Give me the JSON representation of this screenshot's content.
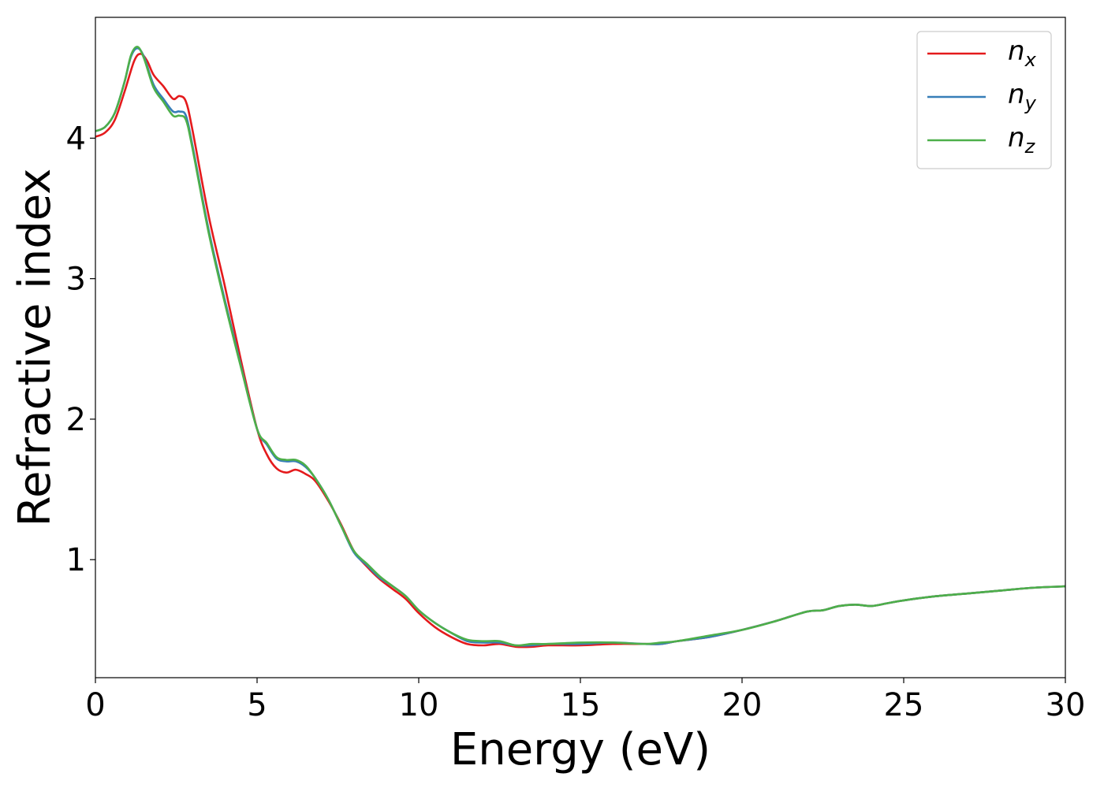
{
  "chart_data": {
    "type": "line",
    "title": "",
    "xlabel": "Energy (eV)",
    "ylabel": "Refractive index",
    "xlim": [
      0,
      30
    ],
    "ylim": [
      0.16,
      4.86
    ],
    "xticks": [
      0,
      5,
      10,
      15,
      20,
      25,
      30
    ],
    "xtick_labels": [
      "0",
      "5",
      "10",
      "15",
      "20",
      "25",
      "30"
    ],
    "yticks": [
      1,
      2,
      3,
      4
    ],
    "ytick_labels": [
      "1",
      "2",
      "3",
      "4"
    ],
    "grid": false,
    "legend_position": "top-right",
    "series": [
      {
        "name": "n_x",
        "legend_base": "n",
        "legend_sub": "x",
        "color": "#e41a1c",
        "x": [
          0,
          0.3,
          0.6,
          0.9,
          1.2,
          1.4,
          1.6,
          1.8,
          2.1,
          2.4,
          2.6,
          2.8,
          3.0,
          3.5,
          4.0,
          4.5,
          5.0,
          5.3,
          5.6,
          5.9,
          6.2,
          6.5,
          6.8,
          7.2,
          7.6,
          8.0,
          8.4,
          8.8,
          9.2,
          9.6,
          10.0,
          10.5,
          11.0,
          11.5,
          12.0,
          12.5,
          13.0,
          13.5,
          14.0,
          15.0,
          16.0,
          17.0,
          17.5,
          18.0,
          19.0,
          20.0,
          21.0,
          22.0,
          22.5,
          23.0,
          23.5,
          24.0,
          24.5,
          25.0,
          26.0,
          27.0,
          28.0,
          29.0,
          30.0
        ],
        "y": [
          4.01,
          4.04,
          4.13,
          4.33,
          4.55,
          4.6,
          4.55,
          4.45,
          4.37,
          4.28,
          4.3,
          4.26,
          4.06,
          3.45,
          2.95,
          2.42,
          1.93,
          1.75,
          1.65,
          1.62,
          1.64,
          1.61,
          1.56,
          1.42,
          1.25,
          1.06,
          0.95,
          0.86,
          0.79,
          0.72,
          0.62,
          0.52,
          0.45,
          0.4,
          0.39,
          0.4,
          0.38,
          0.38,
          0.39,
          0.39,
          0.4,
          0.4,
          0.4,
          0.42,
          0.45,
          0.5,
          0.56,
          0.63,
          0.64,
          0.67,
          0.68,
          0.67,
          0.69,
          0.71,
          0.74,
          0.76,
          0.78,
          0.8,
          0.81
        ]
      },
      {
        "name": "n_y",
        "legend_base": "n",
        "legend_sub": "y",
        "color": "#377eb8",
        "x": [
          0,
          0.3,
          0.6,
          0.9,
          1.1,
          1.3,
          1.5,
          1.8,
          2.1,
          2.4,
          2.6,
          2.8,
          3.0,
          3.5,
          4.0,
          4.5,
          5.0,
          5.3,
          5.6,
          5.9,
          6.2,
          6.5,
          6.8,
          7.2,
          7.6,
          8.0,
          8.4,
          8.8,
          9.2,
          9.6,
          10.0,
          10.5,
          11.0,
          11.5,
          12.0,
          12.5,
          13.0,
          13.5,
          14.0,
          15.0,
          16.0,
          17.0,
          17.5,
          18.0,
          19.0,
          20.0,
          21.0,
          22.0,
          22.5,
          23.0,
          23.5,
          24.0,
          24.5,
          25.0,
          26.0,
          27.0,
          28.0,
          29.0,
          30.0
        ],
        "y": [
          4.05,
          4.08,
          4.18,
          4.4,
          4.58,
          4.64,
          4.58,
          4.38,
          4.28,
          4.19,
          4.19,
          4.16,
          3.95,
          3.35,
          2.85,
          2.38,
          1.93,
          1.82,
          1.72,
          1.7,
          1.7,
          1.66,
          1.58,
          1.43,
          1.24,
          1.05,
          0.96,
          0.87,
          0.81,
          0.74,
          0.64,
          0.55,
          0.48,
          0.42,
          0.41,
          0.41,
          0.39,
          0.39,
          0.4,
          0.4,
          0.41,
          0.4,
          0.4,
          0.42,
          0.45,
          0.5,
          0.56,
          0.63,
          0.64,
          0.67,
          0.68,
          0.67,
          0.69,
          0.71,
          0.74,
          0.76,
          0.78,
          0.8,
          0.81
        ]
      },
      {
        "name": "n_z",
        "legend_base": "n",
        "legend_sub": "z",
        "color": "#4daf4a",
        "x": [
          0,
          0.3,
          0.6,
          0.9,
          1.1,
          1.3,
          1.5,
          1.8,
          2.1,
          2.4,
          2.6,
          2.8,
          3.0,
          3.5,
          4.0,
          4.5,
          5.0,
          5.3,
          5.6,
          5.9,
          6.2,
          6.5,
          6.8,
          7.2,
          7.6,
          8.0,
          8.4,
          8.8,
          9.2,
          9.6,
          10.0,
          10.5,
          11.0,
          11.5,
          12.0,
          12.5,
          13.0,
          13.5,
          14.0,
          15.0,
          16.0,
          17.0,
          17.5,
          18.0,
          19.0,
          20.0,
          21.0,
          22.0,
          22.5,
          23.0,
          23.5,
          24.0,
          24.5,
          25.0,
          26.0,
          27.0,
          28.0,
          29.0,
          30.0
        ],
        "y": [
          4.05,
          4.08,
          4.18,
          4.4,
          4.59,
          4.65,
          4.57,
          4.36,
          4.26,
          4.16,
          4.16,
          4.13,
          3.93,
          3.33,
          2.83,
          2.37,
          1.93,
          1.83,
          1.73,
          1.71,
          1.71,
          1.67,
          1.58,
          1.43,
          1.24,
          1.06,
          0.97,
          0.88,
          0.81,
          0.74,
          0.64,
          0.55,
          0.48,
          0.43,
          0.42,
          0.42,
          0.39,
          0.4,
          0.4,
          0.41,
          0.41,
          0.4,
          0.41,
          0.42,
          0.46,
          0.5,
          0.56,
          0.63,
          0.64,
          0.67,
          0.68,
          0.67,
          0.69,
          0.71,
          0.74,
          0.76,
          0.78,
          0.8,
          0.81
        ]
      }
    ]
  }
}
